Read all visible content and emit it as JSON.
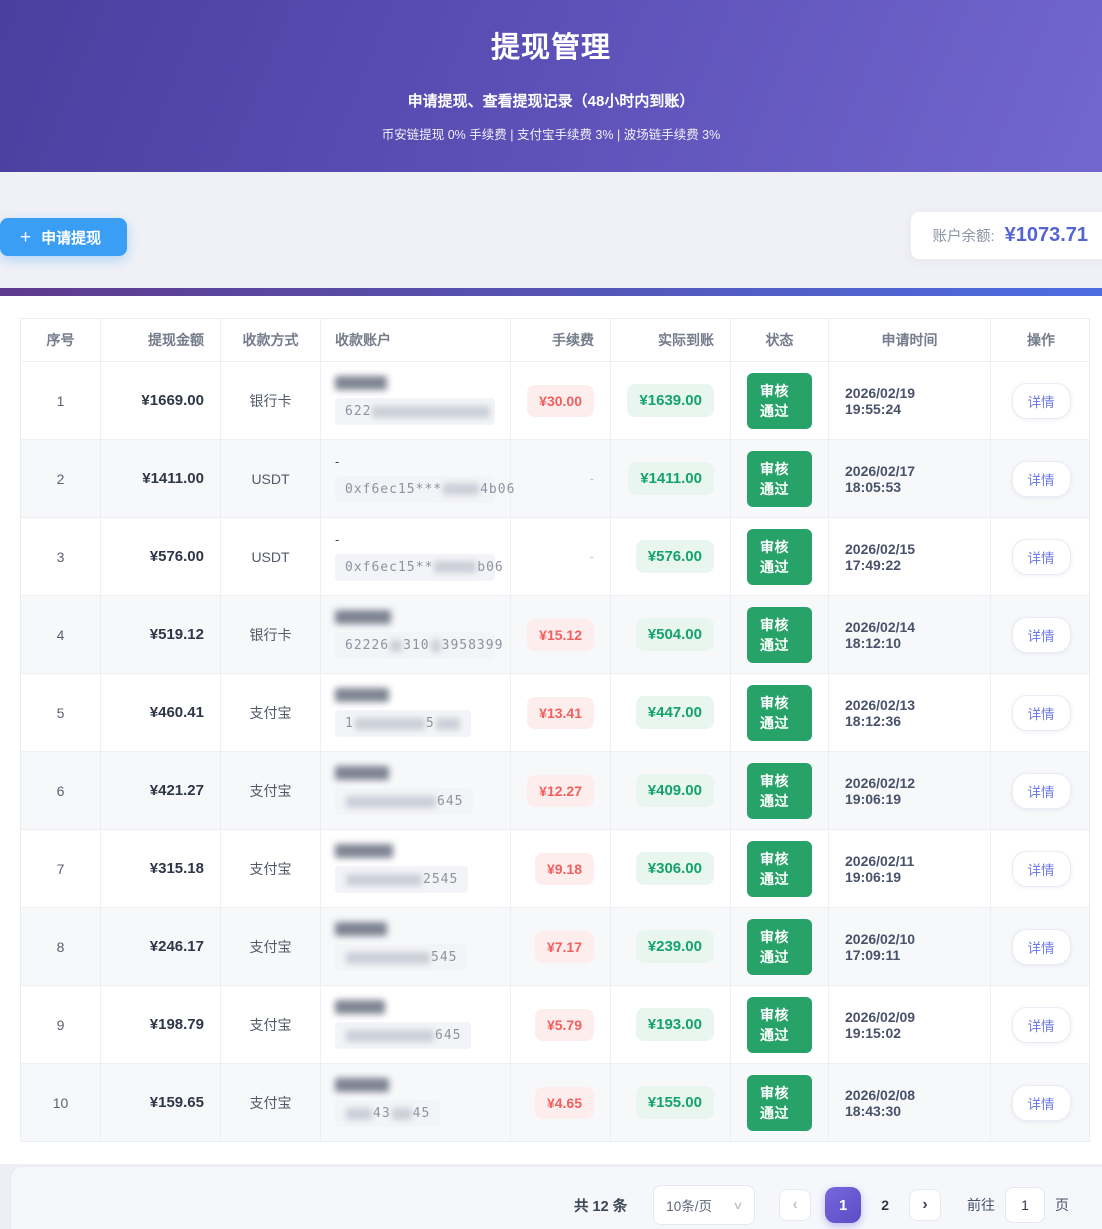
{
  "hero": {
    "title": "提现管理",
    "subtitle": "申请提现、查看提现记录（48小时内到账）",
    "note": "币安链提现 0% 手续费 | 支付宝手续费 3% | 波场链手续费 3%"
  },
  "toolbar": {
    "apply_label": "申请提现",
    "plus_icon": "+",
    "balance_label": "账户余额:",
    "balance_value": "¥1073.71"
  },
  "colors": {
    "primary_blue": "#3b9ef5",
    "accent_purple": "#5564d2",
    "status_green": "#27a268",
    "fee_red": "#f15f5f",
    "actual_green": "#15a36b"
  },
  "table": {
    "columns": [
      "序号",
      "提现金额",
      "收款方式",
      "收款账户",
      "手续费",
      "实际到账",
      "状态",
      "申请时间",
      "操作"
    ],
    "rows": [
      {
        "seq": "1",
        "amount": "¥1669.00",
        "method": "银行卡",
        "account": {
          "line1": "blur",
          "name_w": 52,
          "number": [
            {
              "t": "622"
            },
            {
              "b": 118
            }
          ]
        },
        "fee": "¥30.00",
        "actual": "¥1639.00",
        "status": "审核通过",
        "time": "2026/02/19 19:55:24",
        "op": "详情"
      },
      {
        "seq": "2",
        "amount": "¥1411.00",
        "method": "USDT",
        "account": {
          "line1": "-",
          "number": [
            {
              "t": "0xf6ec15***"
            },
            {
              "b": 36
            },
            {
              "t": "4b06"
            }
          ]
        },
        "fee": "-",
        "actual": "¥1411.00",
        "status": "审核通过",
        "time": "2026/02/17 18:05:53",
        "op": "详情"
      },
      {
        "seq": "3",
        "amount": "¥576.00",
        "method": "USDT",
        "account": {
          "line1": "-",
          "number": [
            {
              "t": "0xf6ec15**"
            },
            {
              "b": 42
            },
            {
              "t": "b06"
            }
          ]
        },
        "fee": "-",
        "actual": "¥576.00",
        "status": "审核通过",
        "time": "2026/02/15 17:49:22",
        "op": "详情"
      },
      {
        "seq": "4",
        "amount": "¥519.12",
        "method": "银行卡",
        "account": {
          "line1": "blur",
          "name_w": 56,
          "number": [
            {
              "t": "62226"
            },
            {
              "b": 12
            },
            {
              "t": "310"
            },
            {
              "b": 10
            },
            {
              "t": "3958399"
            }
          ]
        },
        "fee": "¥15.12",
        "actual": "¥504.00",
        "status": "审核通过",
        "time": "2026/02/14 18:12:10",
        "op": "详情"
      },
      {
        "seq": "5",
        "amount": "¥460.41",
        "method": "支付宝",
        "account": {
          "line1": "blur",
          "name_w": 54,
          "number": [
            {
              "t": "1"
            },
            {
              "b": 70
            },
            {
              "t": "5"
            },
            {
              "b": 24
            }
          ]
        },
        "fee": "¥13.41",
        "actual": "¥447.00",
        "status": "审核通过",
        "time": "2026/02/13 18:12:36",
        "op": "详情"
      },
      {
        "seq": "6",
        "amount": "¥421.27",
        "method": "支付宝",
        "account": {
          "line1": "blur",
          "name_w": 54,
          "number": [
            {
              "b": 90
            },
            {
              "t": "645"
            }
          ]
        },
        "fee": "¥12.27",
        "actual": "¥409.00",
        "status": "审核通过",
        "time": "2026/02/12 19:06:19",
        "op": "详情"
      },
      {
        "seq": "7",
        "amount": "¥315.18",
        "method": "支付宝",
        "account": {
          "line1": "blur",
          "name_w": 58,
          "number": [
            {
              "b": 76
            },
            {
              "t": "2545"
            }
          ]
        },
        "fee": "¥9.18",
        "actual": "¥306.00",
        "status": "审核通过",
        "time": "2026/02/11 19:06:19",
        "op": "详情"
      },
      {
        "seq": "8",
        "amount": "¥246.17",
        "method": "支付宝",
        "account": {
          "line1": "blur",
          "name_w": 52,
          "number": [
            {
              "b": 84
            },
            {
              "t": "545"
            }
          ]
        },
        "fee": "¥7.17",
        "actual": "¥239.00",
        "status": "审核通过",
        "time": "2026/02/10 17:09:11",
        "op": "详情"
      },
      {
        "seq": "9",
        "amount": "¥198.79",
        "method": "支付宝",
        "account": {
          "line1": "blur",
          "name_w": 50,
          "number": [
            {
              "b": 88
            },
            {
              "t": "645"
            }
          ]
        },
        "fee": "¥5.79",
        "actual": "¥193.00",
        "status": "审核通过",
        "time": "2026/02/09 19:15:02",
        "op": "详情"
      },
      {
        "seq": "10",
        "amount": "¥159.65",
        "method": "支付宝",
        "account": {
          "line1": "blur",
          "name_w": 54,
          "number": [
            {
              "b": 26
            },
            {
              "t": "43"
            },
            {
              "b": 20
            },
            {
              "t": "45"
            }
          ]
        },
        "fee": "¥4.65",
        "actual": "¥155.00",
        "status": "审核通过",
        "time": "2026/02/08 18:43:30",
        "op": "详情"
      }
    ]
  },
  "footer": {
    "total": "共 12 条",
    "page_size": "10条/页",
    "select_chevron_icon": "∨",
    "prev_icon": "‹",
    "next_icon": "›",
    "pages": [
      "1",
      "2"
    ],
    "active_page": "1",
    "goto_label": "前往",
    "goto_value": "1",
    "goto_unit": "页"
  }
}
